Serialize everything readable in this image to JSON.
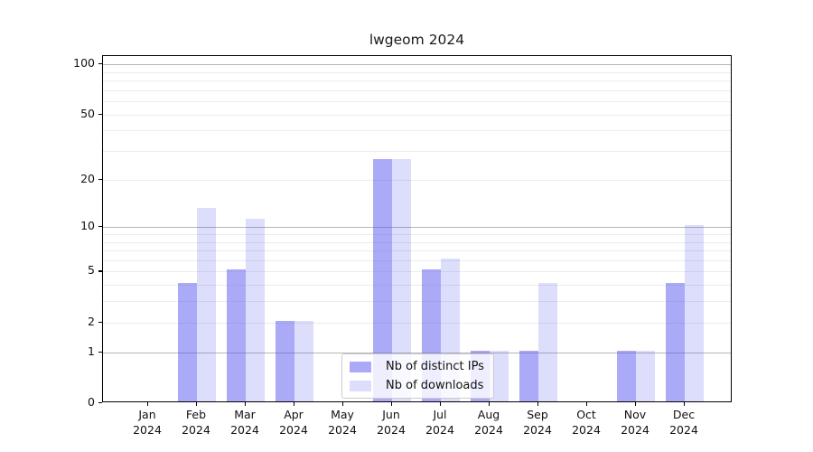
{
  "chart_data": {
    "type": "bar",
    "title": "lwgeom 2024",
    "categories": [
      "Jan",
      "Feb",
      "Mar",
      "Apr",
      "May",
      "Jun",
      "Jul",
      "Aug",
      "Sep",
      "Oct",
      "Nov",
      "Dec"
    ],
    "x_year_label": "2024",
    "series": [
      {
        "name": "Nb of distinct IPs",
        "color": "#5555f0",
        "alpha": 0.5,
        "values": [
          0,
          4,
          5,
          2,
          0,
          26,
          5,
          1,
          1,
          0,
          1,
          4
        ]
      },
      {
        "name": "Nb of downloads",
        "color": "#5555f0",
        "alpha": 0.2,
        "values": [
          0,
          13,
          11,
          2,
          0,
          26,
          6,
          1,
          4,
          0,
          1,
          10
        ]
      }
    ],
    "y_scale": "log1p",
    "ylim": [
      0,
      112
    ],
    "y_tick_labels": [
      100,
      50,
      20,
      10,
      5,
      2,
      1,
      0
    ],
    "y_major_gridlines": [
      1,
      10,
      100
    ],
    "y_minor_gridlines": [
      2,
      3,
      4,
      5,
      6,
      7,
      8,
      9,
      20,
      30,
      40,
      50,
      60,
      70,
      80,
      90
    ],
    "grid": true,
    "legend_position": "lower-center"
  },
  "colors": {
    "bar_base": "#5555f0",
    "bar_ips_rendered": "#aaaaf8",
    "bar_downloads_rendered": "#dcdbfa",
    "major_grid": "#b6b6b6",
    "minor_grid": "#ececec",
    "spine": "#000000",
    "legend_border": "#cccccc"
  }
}
